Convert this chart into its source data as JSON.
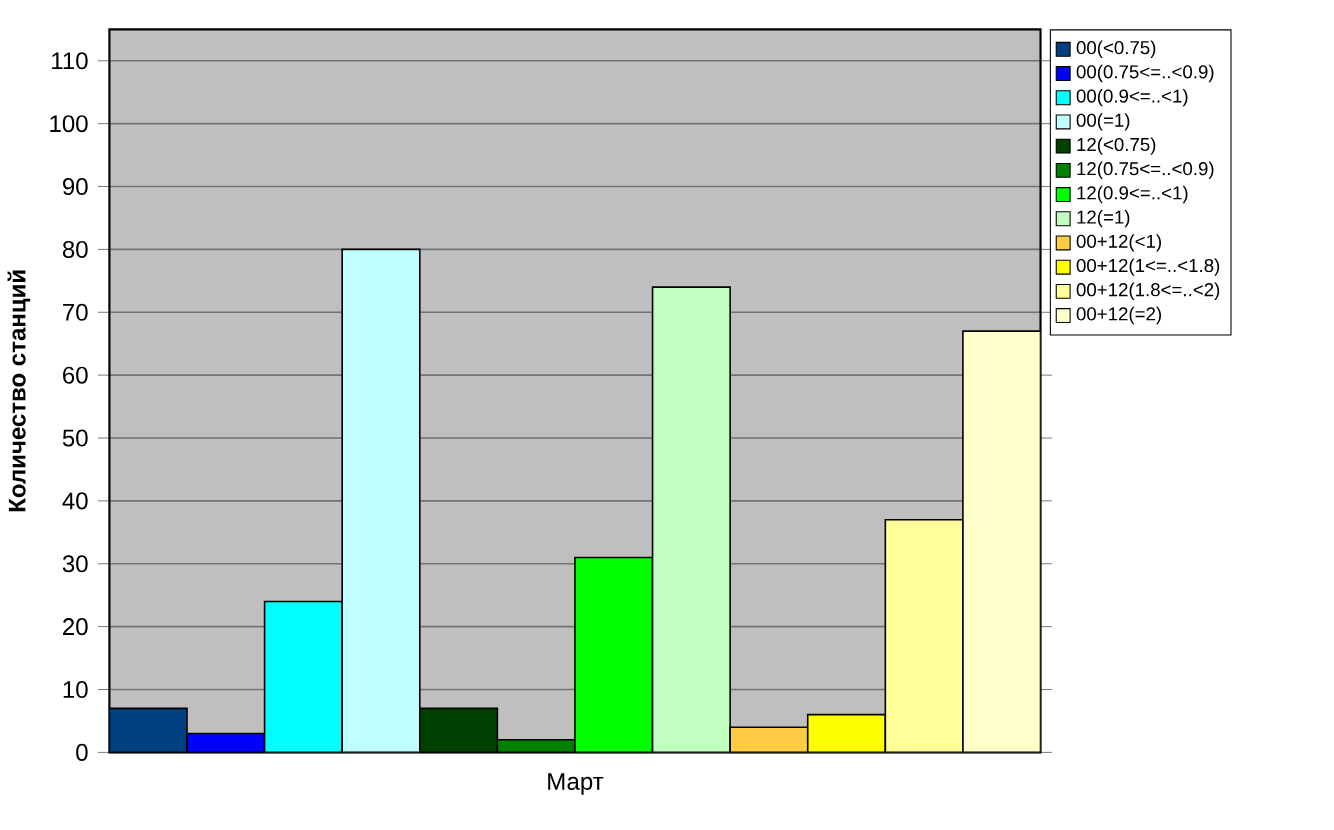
{
  "chart_data": {
    "type": "bar",
    "ylabel": "Количество станций",
    "categories": [
      "Март"
    ],
    "series": [
      {
        "name": "00(<0.75)",
        "color": "#004080",
        "values": [
          7
        ]
      },
      {
        "name": "00(0.75<=..<0.9)",
        "color": "#0000ff",
        "values": [
          3
        ]
      },
      {
        "name": "00(0.9<=..<1)",
        "color": "#00ffff",
        "values": [
          24
        ]
      },
      {
        "name": "00(=1)",
        "color": "#c0ffff",
        "values": [
          80
        ]
      },
      {
        "name": "12(<0.75)",
        "color": "#004000",
        "values": [
          7
        ]
      },
      {
        "name": "12(0.75<=..<0.9)",
        "color": "#008000",
        "values": [
          2
        ]
      },
      {
        "name": "12(0.9<=..<1)",
        "color": "#00ff00",
        "values": [
          31
        ]
      },
      {
        "name": "12(=1)",
        "color": "#c0ffc0",
        "values": [
          74
        ]
      },
      {
        "name": "00+12(<1)",
        "color": "#ffcc44",
        "values": [
          4
        ]
      },
      {
        "name": "00+12(1<=..<1.8)",
        "color": "#ffff00",
        "values": [
          6
        ]
      },
      {
        "name": "00+12(1.8<=..<2)",
        "color": "#ffff99",
        "values": [
          37
        ]
      },
      {
        "name": "00+12(=2)",
        "color": "#ffffcc",
        "values": [
          67
        ]
      }
    ],
    "ylim": [
      0,
      115
    ],
    "yticks": [
      0,
      10,
      20,
      30,
      40,
      50,
      60,
      70,
      80,
      90,
      100,
      110
    ],
    "grid": "y",
    "legend": "top right"
  }
}
